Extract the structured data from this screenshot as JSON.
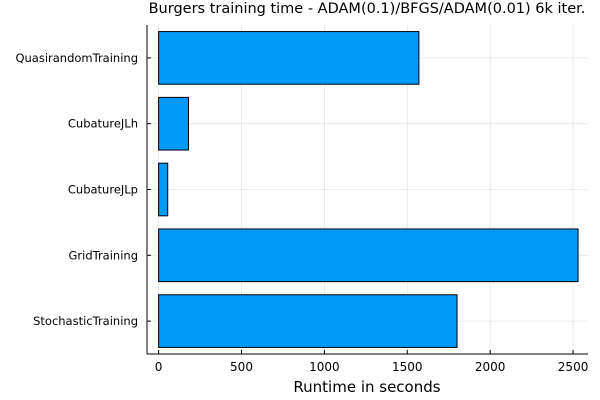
{
  "chart_data": {
    "type": "bar",
    "orientation": "horizontal",
    "title": "Burgers training time - ADAM(0.1)/BFGS/ADAM(0.01) 6k iter.",
    "xlabel": "Runtime in seconds",
    "ylabel": "",
    "categories": [
      "StochasticTraining",
      "GridTraining",
      "CubatureJLp",
      "CubatureJLh",
      "QuasirandomTraining"
    ],
    "values": [
      1800,
      2530,
      55,
      180,
      1570
    ],
    "xlim": [
      -70,
      2590
    ],
    "xticks": [
      0,
      500,
      1000,
      1500,
      2000,
      2500
    ],
    "grid": true,
    "legend": "none",
    "bar_color": "#009af9",
    "bar_edge_color": "#000000"
  }
}
